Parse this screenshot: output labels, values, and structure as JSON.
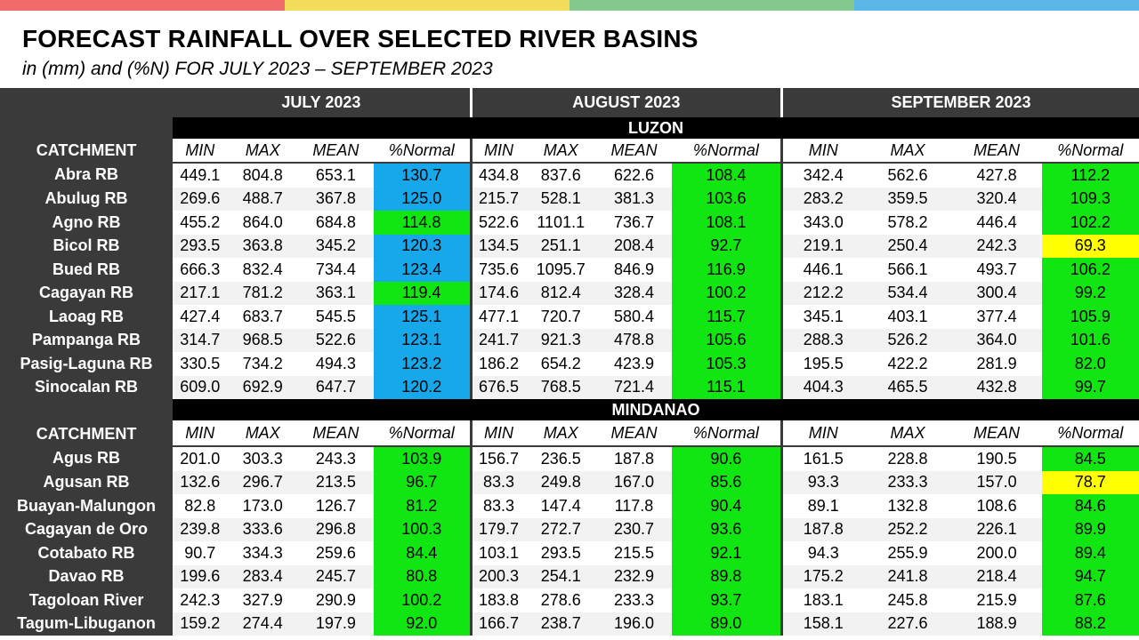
{
  "colors": {
    "top_bar": [
      "#f26b6b",
      "#f3dc5a",
      "#86c98f",
      "#5bb7e8"
    ],
    "blue": "#16a8ea",
    "green": "#12e612",
    "yellow": "#ffff00",
    "header_dark": "#3a3a3a"
  },
  "title": "FORECAST RAINFALL OVER SELECTED RIVER BASINS",
  "subtitle": "in (mm) and (%N) FOR  JULY 2023 – SEPTEMBER 2023",
  "months": [
    "JULY 2023",
    "AUGUST 2023",
    "SEPTEMBER 2023"
  ],
  "column_headers": [
    "MIN",
    "MAX",
    "MEAN",
    "%Normal"
  ],
  "catchment_label": "CATCHMENT",
  "regions": [
    {
      "name": "LUZON",
      "rows": [
        {
          "name": "Abra RB",
          "vals": [
            "449.1",
            "804.8",
            "653.1",
            "130.7",
            "434.8",
            "837.6",
            "622.6",
            "108.4",
            "342.4",
            "562.6",
            "427.8",
            "112.2"
          ],
          "colors": [
            "blue",
            "green",
            "green"
          ]
        },
        {
          "name": "Abulug RB",
          "vals": [
            "269.6",
            "488.7",
            "367.8",
            "125.0",
            "215.7",
            "528.1",
            "381.3",
            "103.6",
            "283.2",
            "359.5",
            "320.4",
            "109.3"
          ],
          "colors": [
            "blue",
            "green",
            "green"
          ]
        },
        {
          "name": "Agno RB",
          "vals": [
            "455.2",
            "864.0",
            "684.8",
            "114.8",
            "522.6",
            "1101.1",
            "736.7",
            "108.1",
            "343.0",
            "578.2",
            "446.4",
            "102.2"
          ],
          "colors": [
            "green",
            "green",
            "green"
          ]
        },
        {
          "name": "Bicol RB",
          "vals": [
            "293.5",
            "363.8",
            "345.2",
            "120.3",
            "134.5",
            "251.1",
            "208.4",
            "92.7",
            "219.1",
            "250.4",
            "242.3",
            "69.3"
          ],
          "colors": [
            "blue",
            "green",
            "yellow"
          ]
        },
        {
          "name": "Bued RB",
          "vals": [
            "666.3",
            "832.4",
            "734.4",
            "123.4",
            "735.6",
            "1095.7",
            "846.9",
            "116.9",
            "446.1",
            "566.1",
            "493.7",
            "106.2"
          ],
          "colors": [
            "blue",
            "green",
            "green"
          ]
        },
        {
          "name": "Cagayan RB",
          "vals": [
            "217.1",
            "781.2",
            "363.1",
            "119.4",
            "174.6",
            "812.4",
            "328.4",
            "100.2",
            "212.2",
            "534.4",
            "300.4",
            "99.2"
          ],
          "colors": [
            "green",
            "green",
            "green"
          ]
        },
        {
          "name": "Laoag RB",
          "vals": [
            "427.4",
            "683.7",
            "545.5",
            "125.1",
            "477.1",
            "720.7",
            "580.4",
            "115.7",
            "345.1",
            "403.1",
            "377.4",
            "105.9"
          ],
          "colors": [
            "blue",
            "green",
            "green"
          ]
        },
        {
          "name": "Pampanga RB",
          "vals": [
            "314.7",
            "968.5",
            "522.6",
            "123.1",
            "241.7",
            "921.3",
            "478.8",
            "105.6",
            "288.3",
            "526.2",
            "364.0",
            "101.6"
          ],
          "colors": [
            "blue",
            "green",
            "green"
          ]
        },
        {
          "name": "Pasig-Laguna RB",
          "vals": [
            "330.5",
            "734.2",
            "494.3",
            "123.2",
            "186.2",
            "654.2",
            "423.9",
            "105.3",
            "195.5",
            "422.2",
            "281.9",
            "82.0"
          ],
          "colors": [
            "blue",
            "green",
            "green"
          ]
        },
        {
          "name": "Sinocalan RB",
          "vals": [
            "609.0",
            "692.9",
            "647.7",
            "120.2",
            "676.5",
            "768.5",
            "721.4",
            "115.1",
            "404.3",
            "465.5",
            "432.8",
            "99.7"
          ],
          "colors": [
            "blue",
            "green",
            "green"
          ]
        }
      ]
    },
    {
      "name": "MINDANAO",
      "rows": [
        {
          "name": "Agus RB",
          "vals": [
            "201.0",
            "303.3",
            "243.3",
            "103.9",
            "156.7",
            "236.5",
            "187.8",
            "90.6",
            "161.5",
            "228.8",
            "190.5",
            "84.5"
          ],
          "colors": [
            "green",
            "green",
            "green"
          ]
        },
        {
          "name": "Agusan RB",
          "vals": [
            "132.6",
            "296.7",
            "213.5",
            "96.7",
            "83.3",
            "249.8",
            "167.0",
            "85.6",
            "93.3",
            "233.3",
            "157.0",
            "78.7"
          ],
          "colors": [
            "green",
            "green",
            "yellow"
          ]
        },
        {
          "name": "Buayan-Malungon",
          "vals": [
            "82.8",
            "173.0",
            "126.7",
            "81.2",
            "83.3",
            "147.4",
            "117.8",
            "90.4",
            "89.1",
            "132.8",
            "108.6",
            "84.6"
          ],
          "colors": [
            "green",
            "green",
            "green"
          ]
        },
        {
          "name": "Cagayan de Oro",
          "vals": [
            "239.8",
            "333.6",
            "296.8",
            "100.3",
            "179.7",
            "272.7",
            "230.7",
            "93.6",
            "187.8",
            "252.2",
            "226.1",
            "89.9"
          ],
          "colors": [
            "green",
            "green",
            "green"
          ]
        },
        {
          "name": "Cotabato RB",
          "vals": [
            "90.7",
            "334.3",
            "259.6",
            "84.4",
            "103.1",
            "293.5",
            "215.5",
            "92.1",
            "94.3",
            "255.9",
            "200.0",
            "89.4"
          ],
          "colors": [
            "green",
            "green",
            "green"
          ]
        },
        {
          "name": "Davao RB",
          "vals": [
            "199.6",
            "283.4",
            "245.7",
            "80.8",
            "200.3",
            "254.1",
            "232.9",
            "89.8",
            "175.2",
            "241.8",
            "218.4",
            "94.7"
          ],
          "colors": [
            "green",
            "green",
            "green"
          ]
        },
        {
          "name": "Tagoloan River",
          "vals": [
            "242.3",
            "327.9",
            "290.9",
            "100.2",
            "183.8",
            "278.6",
            "233.3",
            "93.7",
            "183.1",
            "245.8",
            "215.9",
            "87.6"
          ],
          "colors": [
            "green",
            "green",
            "green"
          ]
        },
        {
          "name": "Tagum-Libuganon",
          "vals": [
            "159.2",
            "274.4",
            "197.9",
            "92.0",
            "166.7",
            "238.7",
            "196.0",
            "89.0",
            "158.1",
            "227.6",
            "188.9",
            "88.2"
          ],
          "colors": [
            "green",
            "green",
            "green"
          ]
        }
      ]
    }
  ]
}
